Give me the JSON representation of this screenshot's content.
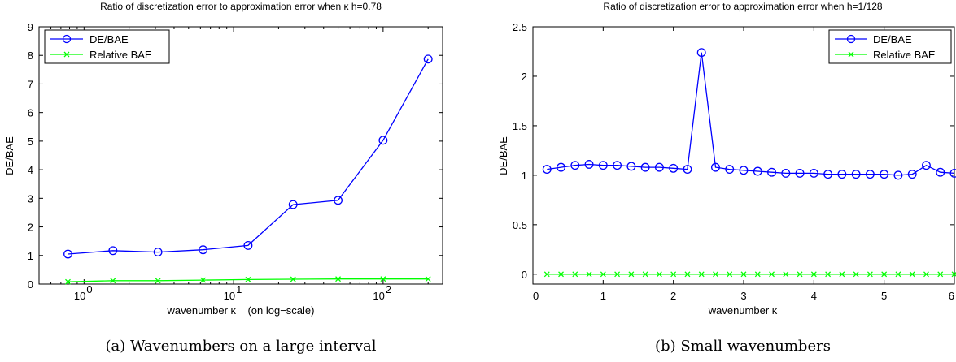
{
  "chart_data": [
    {
      "type": "line",
      "title": "Ratio of discretization error to approximation error when κ h=0.78",
      "xlabel": "wavenumber κ    (on log−scale)",
      "ylabel": "DE/BAE",
      "caption": "(a) Wavenumbers on a large interval",
      "xscale": "log",
      "xlim": [
        0.5,
        250
      ],
      "ylim": [
        0,
        9
      ],
      "x_major_ticks": [
        1,
        10,
        100
      ],
      "x_tick_labels": [
        {
          "base": "10",
          "exp": "0"
        },
        {
          "base": "10",
          "exp": "1"
        },
        {
          "base": "10",
          "exp": "2"
        }
      ],
      "y_ticks": [
        0,
        1,
        2,
        3,
        4,
        5,
        6,
        7,
        8,
        9
      ],
      "y_tick_labels": [
        "0",
        "1",
        "2",
        "3",
        "4",
        "5",
        "6",
        "7",
        "8",
        "9"
      ],
      "grid": false,
      "legend_position": "top-left",
      "series": [
        {
          "name": "DE/BAE",
          "color": "#0000ff",
          "marker": "circle",
          "x": [
            0.78,
            1.56,
            3.12,
            6.25,
            12.5,
            25,
            50,
            100,
            200
          ],
          "y": [
            1.05,
            1.17,
            1.12,
            1.2,
            1.35,
            2.78,
            2.93,
            5.03,
            7.87
          ]
        },
        {
          "name": "Relative BAE",
          "color": "#00ff00",
          "marker": "x",
          "x": [
            0.78,
            1.56,
            3.12,
            6.25,
            12.5,
            25,
            50,
            100,
            200
          ],
          "y": [
            0.08,
            0.12,
            0.12,
            0.14,
            0.16,
            0.17,
            0.18,
            0.18,
            0.18
          ]
        }
      ]
    },
    {
      "type": "line",
      "title": "Ratio of discretization error to approximation error when h=1/128",
      "xlabel": "wavenumber κ",
      "ylabel": "DE/BAE",
      "caption": "(b) Small wavenumbers",
      "xscale": "linear",
      "xlim": [
        0,
        6
      ],
      "ylim": [
        -0.1,
        2.5
      ],
      "x_ticks": [
        0,
        1,
        2,
        3,
        4,
        5,
        6
      ],
      "x_tick_labels": [
        "0",
        "1",
        "2",
        "3",
        "4",
        "5",
        "6"
      ],
      "y_ticks": [
        0,
        0.5,
        1,
        1.5,
        2,
        2.5
      ],
      "y_tick_labels": [
        "0",
        "0.5",
        "1",
        "1.5",
        "2",
        "2.5"
      ],
      "grid": false,
      "legend_position": "top-right",
      "series": [
        {
          "name": "DE/BAE",
          "color": "#0000ff",
          "marker": "circle",
          "x": [
            0.2,
            0.4,
            0.6,
            0.8,
            1.0,
            1.2,
            1.4,
            1.6,
            1.8,
            2.0,
            2.2,
            2.4,
            2.6,
            2.8,
            3.0,
            3.2,
            3.4,
            3.6,
            3.8,
            4.0,
            4.2,
            4.4,
            4.6,
            4.8,
            5.0,
            5.2,
            5.4,
            5.6,
            5.8,
            6.0
          ],
          "y": [
            1.06,
            1.08,
            1.1,
            1.11,
            1.1,
            1.1,
            1.09,
            1.08,
            1.08,
            1.07,
            1.06,
            2.24,
            1.08,
            1.06,
            1.05,
            1.04,
            1.03,
            1.02,
            1.02,
            1.02,
            1.01,
            1.01,
            1.01,
            1.01,
            1.01,
            1.0,
            1.01,
            1.1,
            1.03,
            1.02
          ]
        },
        {
          "name": "Relative BAE",
          "color": "#00ff00",
          "marker": "x",
          "x": [
            0.2,
            0.4,
            0.6,
            0.8,
            1.0,
            1.2,
            1.4,
            1.6,
            1.8,
            2.0,
            2.2,
            2.4,
            2.6,
            2.8,
            3.0,
            3.2,
            3.4,
            3.6,
            3.8,
            4.0,
            4.2,
            4.4,
            4.6,
            4.8,
            5.0,
            5.2,
            5.4,
            5.6,
            5.8,
            6.0
          ],
          "y": [
            0.0,
            0.0,
            0.0,
            0.0,
            0.0,
            0.0,
            0.0,
            0.0,
            0.0,
            0.0,
            0.0,
            0.0,
            0.0,
            0.0,
            0.0,
            0.0,
            0.0,
            0.0,
            0.0,
            0.0,
            0.0,
            0.0,
            0.0,
            0.0,
            0.0,
            0.0,
            0.0,
            0.0,
            0.0,
            0.0
          ]
        }
      ]
    }
  ]
}
